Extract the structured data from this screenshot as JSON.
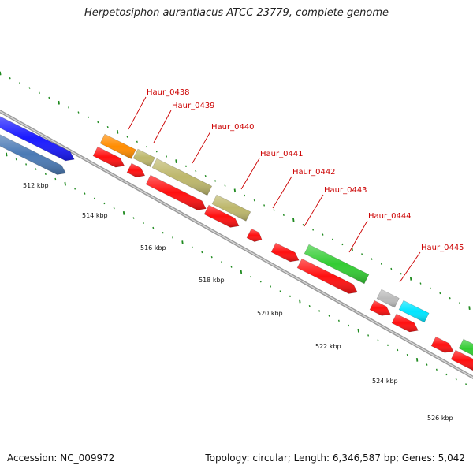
{
  "title": "Herpetosiphon aurantiacus ATCC 23779, complete genome",
  "footer": {
    "accession": "Accession: NC_009972",
    "summary": "Topology: circular; Length: 6,346,587 bp; Genes: 5,042"
  },
  "colors": {
    "backbone": "#8c8c8c",
    "ticks": "#1f8a1f",
    "label": "#cc0000",
    "red_gene": "#ff1010",
    "blue_gene": "#1a1aff",
    "steelblue_gene": "#4a7ab5",
    "orange_gene": "#ff8c00",
    "khaki_gene": "#bdb76b",
    "green_gene": "#33cc33",
    "gray_gene": "#bbbbbb",
    "cyan_gene": "#00e5ff"
  },
  "scale": {
    "tick_labels": [
      "512 kbp",
      "514 kbp",
      "516 kbp",
      "518 kbp",
      "520 kbp",
      "522 kbp",
      "524 kbp",
      "526 kbp"
    ]
  },
  "gene_labels": [
    "Haur_0438",
    "Haur_0439",
    "Haur_0440",
    "Haur_0441",
    "Haur_0442",
    "Haur_0443",
    "Haur_0444",
    "Haur_0445"
  ]
}
